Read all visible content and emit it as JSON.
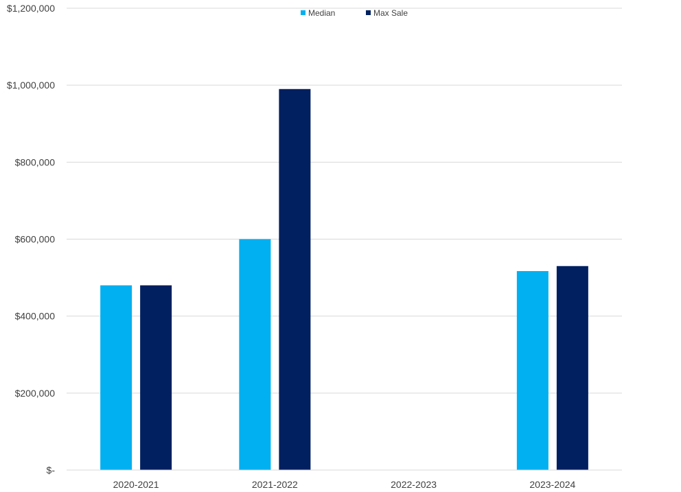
{
  "chart_data": {
    "type": "bar",
    "categories": [
      "2020-2021",
      "2021-2022",
      "2022-2023",
      "2023-2024"
    ],
    "series": [
      {
        "name": "Median",
        "color": "#00B0F0",
        "values": [
          480000,
          600000,
          null,
          517000
        ]
      },
      {
        "name": "Max Sale",
        "color": "#002060",
        "values": [
          480000,
          990000,
          null,
          530000
        ]
      }
    ],
    "ylim": [
      0,
      1200000
    ],
    "yticks": [
      0,
      200000,
      400000,
      600000,
      800000,
      1000000,
      1200000
    ],
    "ytick_labels": [
      "$-",
      "$200,000",
      "$400,000",
      "$600,000",
      "$800,000",
      "$1,000,000",
      "$1,200,000"
    ],
    "grid": true,
    "legend_position": "top-center"
  }
}
